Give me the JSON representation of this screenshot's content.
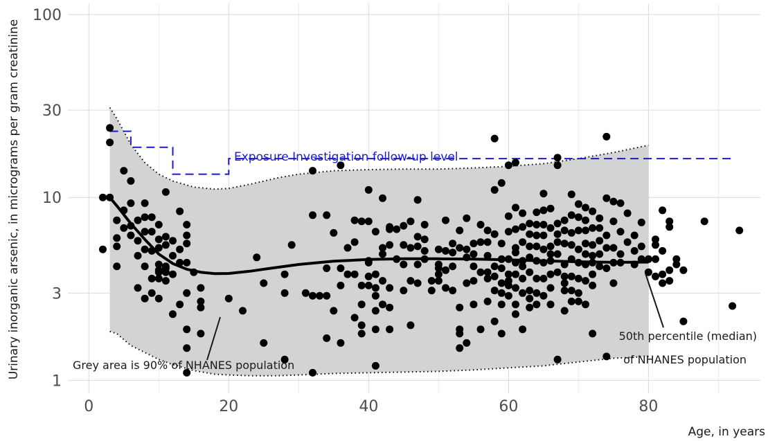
{
  "chart_data": {
    "type": "scatter",
    "title": "",
    "xlabel": "Age, in years",
    "ylabel": "Urinary inorganic arsenic, in micrograms per gram creatinine",
    "xlim": [
      -3,
      96
    ],
    "ylim": [
      0.85,
      115
    ],
    "y_scale": "log",
    "grid": true,
    "x_ticks": [
      0,
      20,
      40,
      60,
      80
    ],
    "y_ticks": [
      1,
      3,
      10,
      30,
      100
    ],
    "x_tick_labels": [
      "0",
      "20",
      "40",
      "60",
      "80"
    ],
    "y_tick_labels": [
      "1",
      "3",
      "10",
      "30",
      "100"
    ],
    "colors": {
      "points": "#000000",
      "band": "#d3d3d3",
      "followup": "#1a1acd",
      "median": "#000000"
    },
    "band_90": [
      {
        "x": 3,
        "lo": 1.85,
        "hi": 31
      },
      {
        "x": 4,
        "lo": 1.8,
        "hi": 27
      },
      {
        "x": 6,
        "lo": 1.55,
        "hi": 19.5
      },
      {
        "x": 8,
        "lo": 1.42,
        "hi": 15.5
      },
      {
        "x": 10,
        "lo": 1.3,
        "hi": 13.4
      },
      {
        "x": 12,
        "lo": 1.22,
        "hi": 12.3
      },
      {
        "x": 15,
        "lo": 1.13,
        "hi": 11.4
      },
      {
        "x": 18,
        "lo": 1.08,
        "hi": 11.1
      },
      {
        "x": 20,
        "lo": 1.07,
        "hi": 11.2
      },
      {
        "x": 23,
        "lo": 1.06,
        "hi": 11.8
      },
      {
        "x": 27,
        "lo": 1.06,
        "hi": 12.8
      },
      {
        "x": 30,
        "lo": 1.07,
        "hi": 13.4
      },
      {
        "x": 35,
        "lo": 1.09,
        "hi": 14.0
      },
      {
        "x": 40,
        "lo": 1.1,
        "hi": 14.2
      },
      {
        "x": 45,
        "lo": 1.11,
        "hi": 14.3
      },
      {
        "x": 50,
        "lo": 1.12,
        "hi": 14.3
      },
      {
        "x": 55,
        "lo": 1.14,
        "hi": 14.5
      },
      {
        "x": 60,
        "lo": 1.17,
        "hi": 14.8
      },
      {
        "x": 65,
        "lo": 1.2,
        "hi": 15.3
      },
      {
        "x": 70,
        "lo": 1.26,
        "hi": 16.3
      },
      {
        "x": 75,
        "lo": 1.32,
        "hi": 17.6
      },
      {
        "x": 80,
        "lo": 1.35,
        "hi": 19.3
      }
    ],
    "median": [
      {
        "x": 3,
        "y": 10.0
      },
      {
        "x": 4,
        "y": 9.0
      },
      {
        "x": 6,
        "y": 7.2
      },
      {
        "x": 8,
        "y": 5.9
      },
      {
        "x": 10,
        "y": 4.9
      },
      {
        "x": 12,
        "y": 4.35
      },
      {
        "x": 14,
        "y": 4.05
      },
      {
        "x": 16,
        "y": 3.9
      },
      {
        "x": 18,
        "y": 3.83
      },
      {
        "x": 20,
        "y": 3.84
      },
      {
        "x": 23,
        "y": 3.95
      },
      {
        "x": 26,
        "y": 4.1
      },
      {
        "x": 30,
        "y": 4.3
      },
      {
        "x": 35,
        "y": 4.48
      },
      {
        "x": 40,
        "y": 4.58
      },
      {
        "x": 45,
        "y": 4.62
      },
      {
        "x": 50,
        "y": 4.62
      },
      {
        "x": 55,
        "y": 4.6
      },
      {
        "x": 60,
        "y": 4.56
      },
      {
        "x": 65,
        "y": 4.5
      },
      {
        "x": 70,
        "y": 4.45
      },
      {
        "x": 75,
        "y": 4.42
      },
      {
        "x": 80,
        "y": 4.43
      }
    ],
    "followup_level": [
      {
        "x": 3,
        "y": 23
      },
      {
        "x": 6,
        "y": 23
      },
      {
        "x": 6,
        "y": 18.8
      },
      {
        "x": 12,
        "y": 18.8
      },
      {
        "x": 12,
        "y": 13.4
      },
      {
        "x": 20,
        "y": 13.4
      },
      {
        "x": 20,
        "y": 16.3
      },
      {
        "x": 92,
        "y": 16.3
      }
    ],
    "points": [
      [
        2,
        10
      ],
      [
        2,
        5.2
      ],
      [
        3,
        24
      ],
      [
        3,
        20
      ],
      [
        3,
        10
      ],
      [
        4,
        4.2
      ],
      [
        4,
        6
      ],
      [
        4,
        5.4
      ],
      [
        4,
        7.5
      ],
      [
        5,
        8.5
      ],
      [
        5,
        14
      ],
      [
        5,
        6.8
      ],
      [
        6,
        12.3
      ],
      [
        6,
        7
      ],
      [
        6,
        9.3
      ],
      [
        6,
        6.2
      ],
      [
        7,
        7.5
      ],
      [
        7,
        5.8
      ],
      [
        7,
        4.8
      ],
      [
        7,
        3.2
      ],
      [
        8,
        5.2
      ],
      [
        8,
        7.8
      ],
      [
        8,
        6.5
      ],
      [
        8,
        9.3
      ],
      [
        8,
        2.8
      ],
      [
        8,
        4.2
      ],
      [
        9,
        3.6
      ],
      [
        9,
        5.1
      ],
      [
        9,
        6.5
      ],
      [
        9,
        7.8
      ],
      [
        9,
        3
      ],
      [
        10,
        4
      ],
      [
        10,
        4.3
      ],
      [
        10,
        5.9
      ],
      [
        10,
        3.6
      ],
      [
        10,
        5.3
      ],
      [
        10,
        7.1
      ],
      [
        10,
        3.9
      ],
      [
        10,
        2.8
      ],
      [
        11,
        4.2
      ],
      [
        11,
        5.5
      ],
      [
        11,
        4.1
      ],
      [
        11,
        10.7
      ],
      [
        11,
        6.1
      ],
      [
        11,
        3.5
      ],
      [
        11,
        3.9
      ],
      [
        12,
        4.8
      ],
      [
        12,
        5.8
      ],
      [
        12,
        2.3
      ],
      [
        12,
        3.8
      ],
      [
        13,
        8.4
      ],
      [
        13,
        2.6
      ],
      [
        13,
        4.4
      ],
      [
        13,
        5.2
      ],
      [
        14,
        3
      ],
      [
        14,
        5.6
      ],
      [
        14,
        1.5
      ],
      [
        14,
        6.2
      ],
      [
        14,
        7.1
      ],
      [
        14,
        1.9
      ],
      [
        14,
        4.4
      ],
      [
        14,
        1.1
      ],
      [
        15,
        3.9
      ],
      [
        16,
        3.2
      ],
      [
        16,
        2.7
      ],
      [
        16,
        2.5
      ],
      [
        16,
        1.8
      ],
      [
        20,
        2.8
      ],
      [
        22,
        2.4
      ],
      [
        24,
        4.7
      ],
      [
        25,
        3.4
      ],
      [
        25,
        1.6
      ],
      [
        28,
        1.3
      ],
      [
        28,
        3.0
      ],
      [
        28,
        3.8
      ],
      [
        29,
        5.5
      ],
      [
        31,
        3.0
      ],
      [
        32,
        1.1
      ],
      [
        32,
        14
      ],
      [
        32,
        8
      ],
      [
        32,
        2.9
      ],
      [
        33,
        2.9
      ],
      [
        34,
        4.1
      ],
      [
        34,
        2.9
      ],
      [
        34,
        8
      ],
      [
        34,
        1.7
      ],
      [
        35,
        2.4
      ],
      [
        35,
        6.4
      ],
      [
        36,
        1.6
      ],
      [
        36,
        15
      ],
      [
        36,
        3.3
      ],
      [
        36,
        4.1
      ],
      [
        37,
        5.3
      ],
      [
        37,
        3.8
      ],
      [
        38,
        7.5
      ],
      [
        38,
        5.7
      ],
      [
        38,
        3.8
      ],
      [
        38,
        2.2
      ],
      [
        39,
        1.8
      ],
      [
        39,
        3.3
      ],
      [
        39,
        7.4
      ],
      [
        39,
        2.6
      ],
      [
        39,
        2.0
      ],
      [
        40,
        11
      ],
      [
        40,
        4.5
      ],
      [
        40,
        3.7
      ],
      [
        40,
        7.4
      ],
      [
        40,
        3.3
      ],
      [
        40,
        4.4
      ],
      [
        41,
        6.5
      ],
      [
        41,
        3.2
      ],
      [
        41,
        2.9
      ],
      [
        41,
        2.4
      ],
      [
        41,
        1.9
      ],
      [
        41,
        1.2
      ],
      [
        41,
        3.8
      ],
      [
        42,
        9.9
      ],
      [
        42,
        5.3
      ],
      [
        42,
        3.5
      ],
      [
        42,
        2.6
      ],
      [
        42,
        4.9
      ],
      [
        43,
        6.7
      ],
      [
        43,
        3.2
      ],
      [
        43,
        5.5
      ],
      [
        43,
        2.5
      ],
      [
        43,
        6.9
      ],
      [
        43,
        1.9
      ],
      [
        44,
        6.7
      ],
      [
        44,
        4.6
      ],
      [
        45,
        7.0
      ],
      [
        45,
        4.3
      ],
      [
        45,
        3.1
      ],
      [
        45,
        5.5
      ],
      [
        46,
        7.4
      ],
      [
        46,
        5.3
      ],
      [
        46,
        3.5
      ],
      [
        46,
        2.0
      ],
      [
        47,
        4.3
      ],
      [
        47,
        6.1
      ],
      [
        47,
        9.7
      ],
      [
        47,
        3.4
      ],
      [
        47,
        5.4
      ],
      [
        48,
        7.1
      ],
      [
        48,
        5.9
      ],
      [
        48,
        4.6
      ],
      [
        48,
        5.1
      ],
      [
        49,
        3.5
      ],
      [
        49,
        3.1
      ],
      [
        50,
        3.5
      ],
      [
        50,
        4.3
      ],
      [
        50,
        4.1
      ],
      [
        50,
        5.2
      ],
      [
        50,
        3.8
      ],
      [
        51,
        7.5
      ],
      [
        51,
        5.1
      ],
      [
        51,
        3.2
      ],
      [
        51,
        4.0
      ],
      [
        52,
        5.6
      ],
      [
        52,
        3.1
      ],
      [
        52,
        4.2
      ],
      [
        52,
        5.0
      ],
      [
        53,
        6.6
      ],
      [
        53,
        5.3
      ],
      [
        53,
        2.5
      ],
      [
        53,
        1.9
      ],
      [
        53,
        1.8
      ],
      [
        53,
        1.5
      ],
      [
        54,
        7.7
      ],
      [
        54,
        5.2
      ],
      [
        54,
        4.7
      ],
      [
        54,
        1.6
      ],
      [
        54,
        3.4
      ],
      [
        55,
        4.9
      ],
      [
        55,
        4.2
      ],
      [
        55,
        2.6
      ],
      [
        55,
        5.6
      ],
      [
        55,
        3.5
      ],
      [
        56,
        3.9
      ],
      [
        56,
        7.1
      ],
      [
        56,
        5.7
      ],
      [
        56,
        1.9
      ],
      [
        57,
        5.7
      ],
      [
        57,
        4.8
      ],
      [
        57,
        3.9
      ],
      [
        57,
        2.7
      ],
      [
        57,
        6.6
      ],
      [
        57,
        3.6
      ],
      [
        58,
        21
      ],
      [
        58,
        6.3
      ],
      [
        58,
        4.2
      ],
      [
        58,
        3.1
      ],
      [
        58,
        2.1
      ],
      [
        58,
        11
      ],
      [
        58,
        3.7
      ],
      [
        59,
        12
      ],
      [
        59,
        5.6
      ],
      [
        59,
        4.6
      ],
      [
        59,
        3.4
      ],
      [
        59,
        3.0
      ],
      [
        59,
        2.6
      ],
      [
        59,
        1.8
      ],
      [
        59,
        4.1
      ],
      [
        60,
        7.9
      ],
      [
        60,
        6.5
      ],
      [
        60,
        4.6
      ],
      [
        60,
        3.8
      ],
      [
        60,
        3.3
      ],
      [
        60,
        2.9
      ],
      [
        60,
        15
      ],
      [
        60,
        3.5
      ],
      [
        61,
        8.8
      ],
      [
        61,
        6.7
      ],
      [
        61,
        5.3
      ],
      [
        61,
        4.4
      ],
      [
        61,
        3.8
      ],
      [
        61,
        3.2
      ],
      [
        61,
        2.6
      ],
      [
        61,
        2.3
      ],
      [
        61,
        15.5
      ],
      [
        61,
        5.0
      ],
      [
        62,
        8.2
      ],
      [
        62,
        6.9
      ],
      [
        62,
        5.7
      ],
      [
        62,
        4.5
      ],
      [
        62,
        4.2
      ],
      [
        62,
        3.6
      ],
      [
        62,
        3.0
      ],
      [
        62,
        1.9
      ],
      [
        63,
        7.2
      ],
      [
        63,
        6.3
      ],
      [
        63,
        5.4
      ],
      [
        63,
        4.7
      ],
      [
        63,
        3.9
      ],
      [
        63,
        3.1
      ],
      [
        63,
        2.5
      ],
      [
        63,
        2.8
      ],
      [
        64,
        7.1
      ],
      [
        64,
        6.2
      ],
      [
        64,
        5.4
      ],
      [
        64,
        4.5
      ],
      [
        64,
        3.6
      ],
      [
        64,
        3.0
      ],
      [
        64,
        2.6
      ],
      [
        64,
        8.3
      ],
      [
        65,
        10.5
      ],
      [
        65,
        8.5
      ],
      [
        65,
        7.1
      ],
      [
        65,
        6.2
      ],
      [
        65,
        5.2
      ],
      [
        65,
        4.4
      ],
      [
        65,
        3.6
      ],
      [
        65,
        2.9
      ],
      [
        66,
        8.7
      ],
      [
        66,
        6.8
      ],
      [
        66,
        5.4
      ],
      [
        66,
        4.5
      ],
      [
        66,
        3.8
      ],
      [
        66,
        3.2
      ],
      [
        66,
        2.6
      ],
      [
        66,
        4.9
      ],
      [
        67,
        16.5
      ],
      [
        67,
        15
      ],
      [
        67,
        7.2
      ],
      [
        67,
        6.3
      ],
      [
        67,
        5.7
      ],
      [
        67,
        4.9
      ],
      [
        67,
        3.9
      ],
      [
        67,
        1.3
      ],
      [
        68,
        7.5
      ],
      [
        68,
        6.6
      ],
      [
        68,
        5.6
      ],
      [
        68,
        4.3
      ],
      [
        68,
        3.7
      ],
      [
        68,
        3.1
      ],
      [
        68,
        2.4
      ],
      [
        68,
        3.4
      ],
      [
        69,
        10.4
      ],
      [
        69,
        8.0
      ],
      [
        69,
        6.4
      ],
      [
        69,
        5.5
      ],
      [
        69,
        4.6
      ],
      [
        69,
        3.7
      ],
      [
        69,
        3.1
      ],
      [
        69,
        2.7
      ],
      [
        70,
        9.2
      ],
      [
        70,
        7.8
      ],
      [
        70,
        6.6
      ],
      [
        70,
        5.2
      ],
      [
        70,
        4.4
      ],
      [
        70,
        3.6
      ],
      [
        70,
        3.0
      ],
      [
        70,
        2.7
      ],
      [
        71,
        8.8
      ],
      [
        71,
        7.5
      ],
      [
        71,
        5.6
      ],
      [
        71,
        4.9
      ],
      [
        71,
        4.3
      ],
      [
        71,
        3.5
      ],
      [
        71,
        2.6
      ],
      [
        71,
        6.6
      ],
      [
        72,
        8.4
      ],
      [
        72,
        6.8
      ],
      [
        72,
        5.5
      ],
      [
        72,
        4.4
      ],
      [
        72,
        3.8
      ],
      [
        72,
        3.3
      ],
      [
        72,
        1.8
      ],
      [
        72,
        4.8
      ],
      [
        73,
        7.7
      ],
      [
        73,
        6.8
      ],
      [
        73,
        5.8
      ],
      [
        73,
        4.9
      ],
      [
        73,
        4.2
      ],
      [
        74,
        9.9
      ],
      [
        74,
        6.2
      ],
      [
        74,
        5.3
      ],
      [
        74,
        4.1
      ],
      [
        74,
        21.5
      ],
      [
        74,
        1.35
      ],
      [
        75,
        9.5
      ],
      [
        75,
        5.3
      ],
      [
        75,
        4.4
      ],
      [
        75,
        3.4
      ],
      [
        75,
        7.4
      ],
      [
        76,
        9.3
      ],
      [
        76,
        6.5
      ],
      [
        76,
        4.9
      ],
      [
        76,
        4.4
      ],
      [
        77,
        8.2
      ],
      [
        77,
        5.7
      ],
      [
        78,
        6.2
      ],
      [
        78,
        5.1
      ],
      [
        78,
        4.3
      ],
      [
        79,
        7.3
      ],
      [
        79,
        5.4
      ],
      [
        79,
        4.6
      ],
      [
        80,
        4.6
      ],
      [
        80,
        3.9
      ],
      [
        81,
        5.5
      ],
      [
        81,
        5.9
      ],
      [
        81,
        4.6
      ],
      [
        81,
        3.7
      ],
      [
        82,
        3.4
      ],
      [
        82,
        8.5
      ],
      [
        82,
        5.1
      ],
      [
        82,
        3.8
      ],
      [
        83,
        7.4
      ],
      [
        83,
        6.9
      ],
      [
        83,
        4.0
      ],
      [
        83,
        3.5
      ],
      [
        84,
        4.6
      ],
      [
        84,
        4.3
      ],
      [
        85,
        4.0
      ],
      [
        85,
        2.1
      ],
      [
        88,
        7.4
      ],
      [
        92,
        2.55
      ],
      [
        93,
        6.6
      ]
    ],
    "annotations": {
      "followup": "Exposure Investigation follow-up level",
      "grey_area": "Grey area is 90% of NHANES population",
      "median_line1": "50th percentile (median)",
      "median_line2": "of NHANES population"
    }
  }
}
